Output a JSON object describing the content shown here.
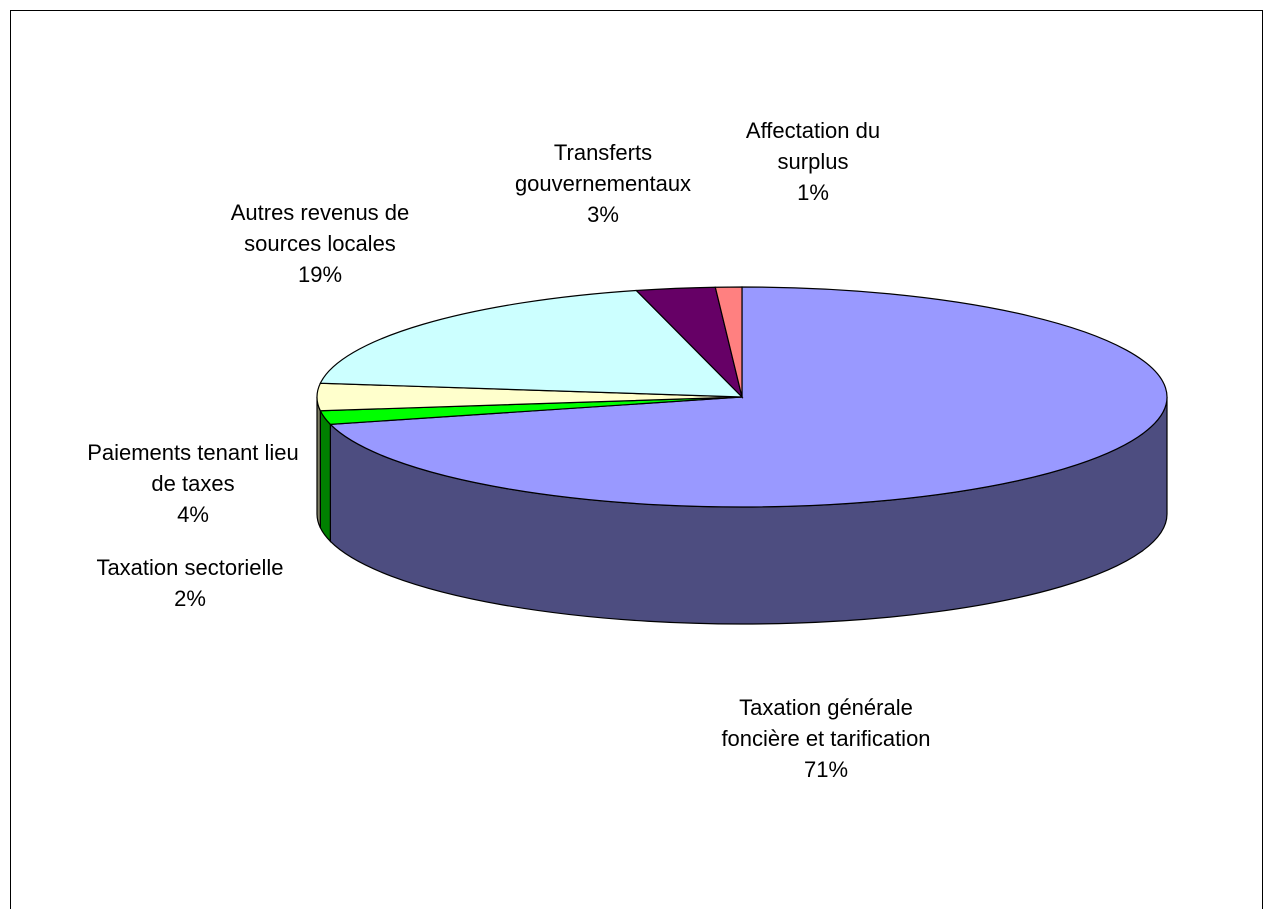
{
  "chart_data": {
    "type": "pie3d",
    "categories": [
      "Taxation générale foncière et tarification",
      "Taxation sectorielle",
      "Paiements tenant lieu de taxes",
      "Autres revenus de sources locales",
      "Transferts gouvernementaux",
      "Affectation du surplus"
    ],
    "values": [
      71,
      2,
      4,
      19,
      3,
      1
    ],
    "value_labels": [
      "71%",
      "2%",
      "4%",
      "19%",
      "3%",
      "1%"
    ],
    "colors": [
      "#9999ff",
      "#00ff00",
      "#ffffcc",
      "#ccffff",
      "#660066",
      "#ff8080"
    ]
  }
}
